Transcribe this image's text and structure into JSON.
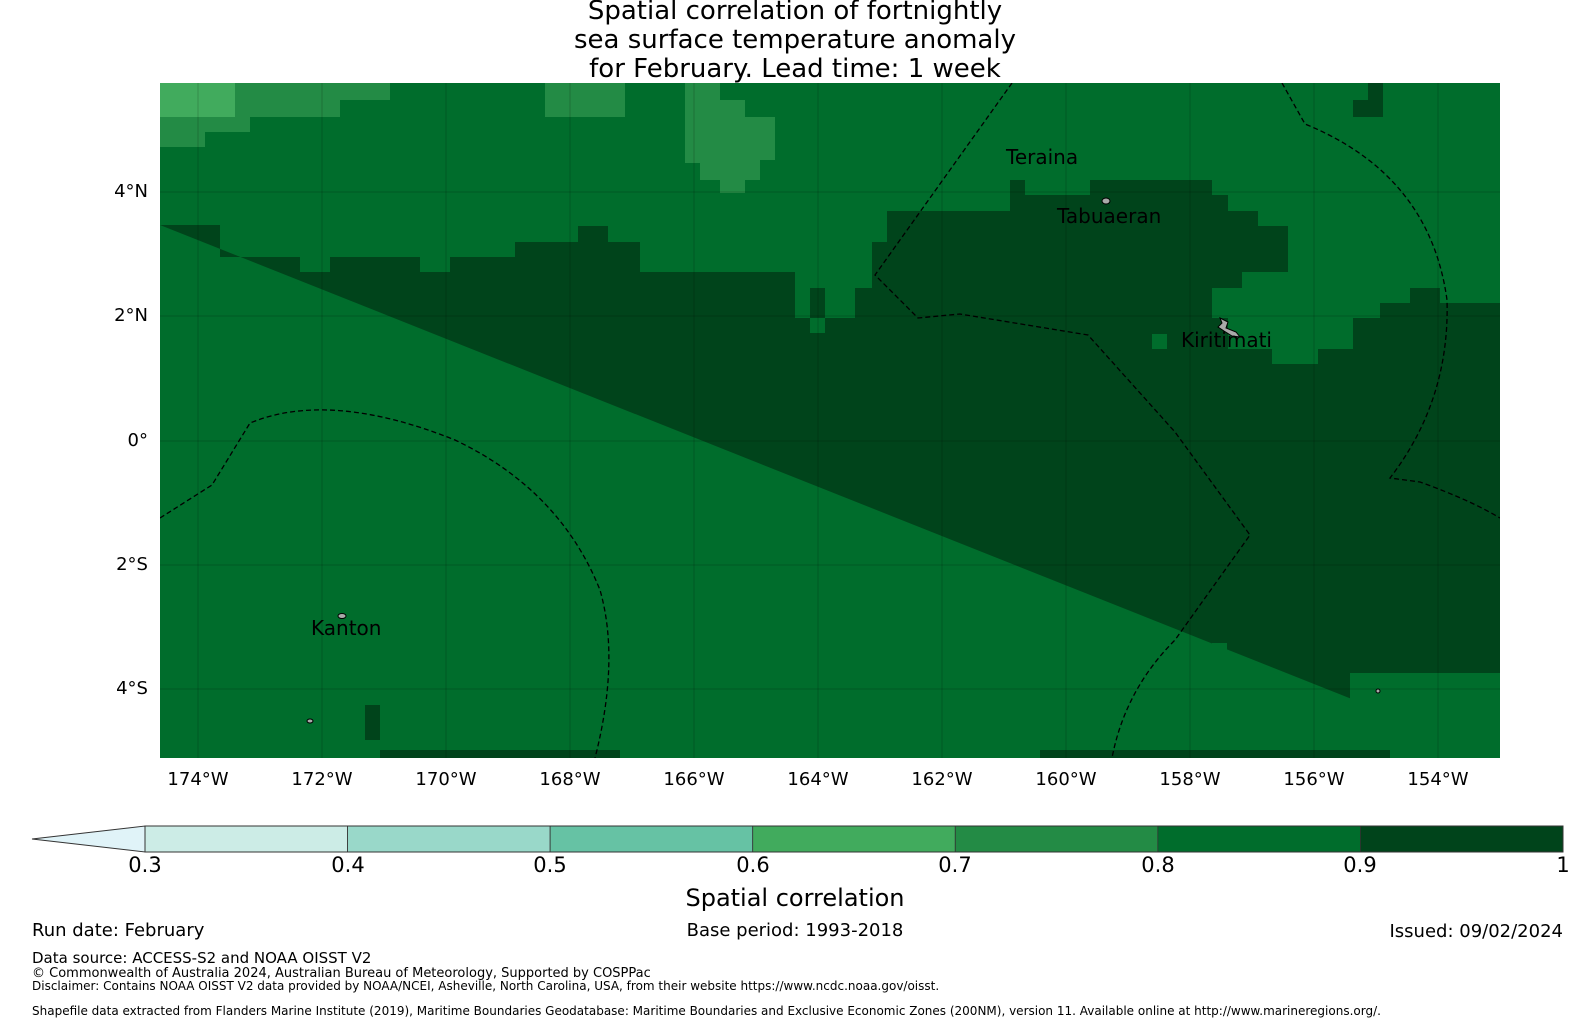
{
  "title": {
    "line1": "Spatial correlation of fortnightly",
    "line2": "sea surface temperature anomaly",
    "line3": "for February. Lead time: 1 week"
  },
  "map": {
    "lat_ticks": [
      "4°N",
      "2°N",
      "0°",
      "2°S",
      "4°S"
    ],
    "lon_ticks": [
      "174°W",
      "172°W",
      "170°W",
      "168°W",
      "166°W",
      "164°W",
      "162°W",
      "160°W",
      "158°W",
      "156°W",
      "154°W"
    ],
    "places": [
      {
        "name": "Teraina"
      },
      {
        "name": "Tabuaeran"
      },
      {
        "name": "Kiritimati"
      },
      {
        "name": "Kanton"
      }
    ],
    "colors": {
      "c07": "#238b45",
      "c08": "#006d2c",
      "c09": "#00441b",
      "c06": "#41ab5d"
    },
    "correlation_zones": [
      {
        "level": "0.6-0.7",
        "color": "#41ab5d"
      },
      {
        "level": "0.7-0.8",
        "color": "#238b45"
      },
      {
        "level": "0.8-0.9",
        "color": "#006d2c"
      },
      {
        "level": "0.9-1",
        "color": "#00441b"
      }
    ],
    "eez_boundaries": "dashed"
  },
  "colorbar": {
    "label": "Spatial correlation",
    "ticks": [
      "0.3",
      "0.4",
      "0.5",
      "0.6",
      "0.7",
      "0.8",
      "0.9",
      "1"
    ],
    "colors": [
      "#e0f3f8",
      "#ccece6",
      "#99d8c9",
      "#66c2a4",
      "#41ab5d",
      "#238b45",
      "#006d2c",
      "#00441b"
    ],
    "extend": "min"
  },
  "footer": {
    "run_date": "Run date: February",
    "base_period": "Base period: 1993-2018",
    "issued": "Issued: 09/02/2024",
    "data_source": "Data source: ACCESS-S2 and NOAA OISST V2",
    "copyright": "© Commonwealth of Australia 2024, Australian Bureau of Meteorology, Supported by COSPPac",
    "disclaimer": "Disclaimer: Contains NOAA OISST V2 data provided by NOAA/NCEI, Asheville, North Carolina, USA, from their website https://www.ncdc.noaa.gov/oisst.",
    "shapefile": "Shapefile data extracted from Flanders Marine Institute (2019), Maritime Boundaries Geodatabase: Maritime Boundaries and Exclusive Economic Zones (200NM), version 11. Available online at http://www.marineregions.org/."
  }
}
